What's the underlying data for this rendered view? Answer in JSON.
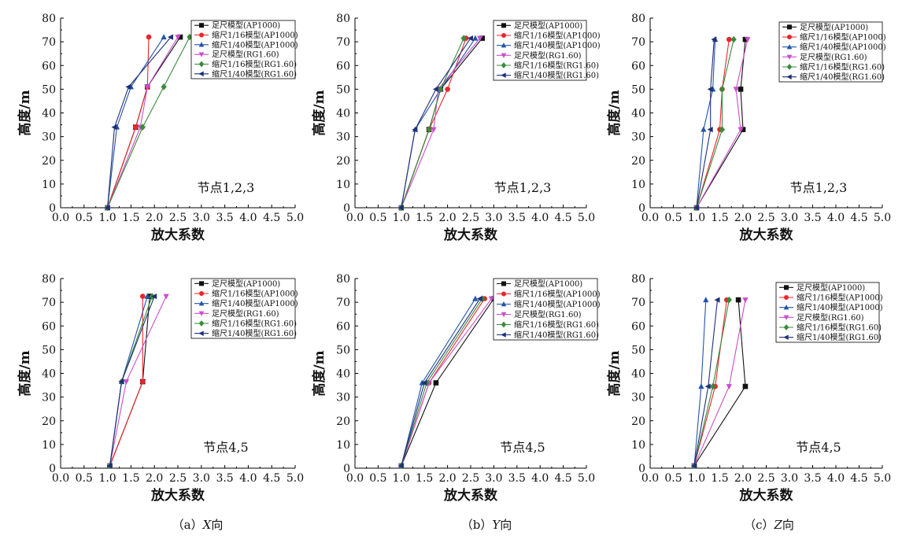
{
  "series_names": [
    "足尺模型(AP1000)",
    "缩尺1/16模型(AP1000)",
    "缩尺1/40模型(AP1000)",
    "足尺模型(RG1.60)",
    "缩尺1/16模型(RG1.60)",
    "缩尺1/40模型(RG1.60)"
  ],
  "series_colors": [
    "#111111",
    "#e8262b",
    "#2155a8",
    "#c94fc9",
    "#3a8a3a",
    "#1f2f7a"
  ],
  "series_markers": [
    "square",
    "circle",
    "triangle-up",
    "triangle-down",
    "diamond",
    "triangle-left"
  ],
  "xlabel": "放大系数",
  "ylabel": "高度/m",
  "xticks": [
    "0.0",
    "0.5",
    "1.0",
    "1.5",
    "2.0",
    "2.5",
    "3.0",
    "3.5",
    "4.0",
    "4.5",
    "5.0"
  ],
  "yticks": [
    "0",
    "10",
    "20",
    "30",
    "40",
    "50",
    "60",
    "70",
    "80"
  ],
  "captions": [
    {
      "prefix": "（a）",
      "axis": "X",
      "suffix": "向"
    },
    {
      "prefix": "（b）",
      "axis": "Y",
      "suffix": "向"
    },
    {
      "prefix": "（c）",
      "axis": "Z",
      "suffix": "向"
    }
  ],
  "chart_data": [
    {
      "type": "line",
      "annotation": "节点1,2,3",
      "xlim": [
        0,
        5
      ],
      "ylim": [
        0,
        80
      ],
      "grid": false,
      "legend": "top-right",
      "series": [
        {
          "name": "足尺模型(AP1000)",
          "x": [
            1.0,
            1.6,
            1.85,
            2.55
          ],
          "y": [
            0,
            34,
            51,
            72
          ]
        },
        {
          "name": "缩尺1/16模型(AP1000)",
          "x": [
            1.0,
            1.6,
            1.85,
            1.88
          ],
          "y": [
            0,
            34,
            51,
            72
          ]
        },
        {
          "name": "缩尺1/40模型(AP1000)",
          "x": [
            1.0,
            1.2,
            1.5,
            2.2
          ],
          "y": [
            0,
            34,
            51,
            72
          ]
        },
        {
          "name": "足尺模型(RG1.60)",
          "x": [
            1.0,
            1.7,
            1.85,
            2.5
          ],
          "y": [
            0,
            34,
            51,
            72
          ]
        },
        {
          "name": "缩尺1/16模型(RG1.60)",
          "x": [
            1.0,
            1.75,
            2.2,
            2.75
          ],
          "y": [
            0,
            34,
            51,
            72
          ]
        },
        {
          "name": "缩尺1/40模型(RG1.60)",
          "x": [
            1.0,
            1.15,
            1.45,
            2.35
          ],
          "y": [
            0,
            34,
            51,
            72
          ]
        }
      ]
    },
    {
      "type": "line",
      "annotation": "节点1,2,3",
      "xlim": [
        0,
        5
      ],
      "ylim": [
        0,
        80
      ],
      "grid": false,
      "legend": "top-right",
      "series": [
        {
          "name": "足尺模型(AP1000)",
          "x": [
            1.0,
            1.6,
            1.85,
            2.75
          ],
          "y": [
            0,
            33,
            50,
            71.5
          ]
        },
        {
          "name": "缩尺1/16模型(AP1000)",
          "x": [
            1.0,
            1.6,
            2.0,
            2.4
          ],
          "y": [
            0,
            33,
            50,
            71.5
          ]
        },
        {
          "name": "缩尺1/40模型(AP1000)",
          "x": [
            1.0,
            1.3,
            1.85,
            2.6
          ],
          "y": [
            0,
            33,
            50,
            71.5
          ]
        },
        {
          "name": "足尺模型(RG1.60)",
          "x": [
            1.0,
            1.7,
            1.8,
            2.7
          ],
          "y": [
            0,
            33,
            50,
            71.5
          ]
        },
        {
          "name": "缩尺1/16模型(RG1.60)",
          "x": [
            1.0,
            1.6,
            1.85,
            2.35
          ],
          "y": [
            0,
            33,
            50,
            71.5
          ]
        },
        {
          "name": "缩尺1/40模型(RG1.60)",
          "x": [
            1.0,
            1.3,
            1.75,
            2.5
          ],
          "y": [
            0,
            33,
            50,
            71.5
          ]
        }
      ]
    },
    {
      "type": "line",
      "annotation": "节点1,2,3",
      "xlim": [
        0,
        5
      ],
      "ylim": [
        0,
        80
      ],
      "grid": false,
      "legend": "top-right",
      "series": [
        {
          "name": "足尺模型(AP1000)",
          "x": [
            1.0,
            2.0,
            1.95,
            2.05
          ],
          "y": [
            0,
            33,
            50,
            71
          ]
        },
        {
          "name": "缩尺1/16模型(AP1000)",
          "x": [
            1.0,
            1.5,
            1.55,
            1.7
          ],
          "y": [
            0,
            33,
            50,
            71
          ]
        },
        {
          "name": "缩尺1/40模型(AP1000)",
          "x": [
            1.0,
            1.15,
            1.35,
            1.4
          ],
          "y": [
            0,
            33,
            50,
            71
          ]
        },
        {
          "name": "足尺模型(RG1.60)",
          "x": [
            1.0,
            1.95,
            1.85,
            2.1
          ],
          "y": [
            0,
            33,
            50,
            71
          ]
        },
        {
          "name": "缩尺1/16模型(RG1.60)",
          "x": [
            1.0,
            1.55,
            1.55,
            1.8
          ],
          "y": [
            0,
            33,
            50,
            71
          ]
        },
        {
          "name": "缩尺1/40模型(RG1.60)",
          "x": [
            1.0,
            1.3,
            1.3,
            1.38
          ],
          "y": [
            0,
            33,
            50,
            71
          ]
        }
      ]
    },
    {
      "type": "line",
      "annotation": "节点4,5",
      "xlim": [
        0,
        5
      ],
      "ylim": [
        0,
        80
      ],
      "grid": false,
      "legend": "top-right",
      "series": [
        {
          "name": "足尺模型(AP1000)",
          "x": [
            1.05,
            1.75,
            1.9
          ],
          "y": [
            1,
            36.5,
            72.5
          ]
        },
        {
          "name": "缩尺1/16模型(AP1000)",
          "x": [
            1.05,
            1.75,
            1.75
          ],
          "y": [
            1,
            36.5,
            72.5
          ]
        },
        {
          "name": "缩尺1/40模型(AP1000)",
          "x": [
            1.05,
            1.3,
            1.85
          ],
          "y": [
            1,
            36.5,
            72.5
          ]
        },
        {
          "name": "足尺模型(RG1.60)",
          "x": [
            1.05,
            1.4,
            2.25
          ],
          "y": [
            1,
            36.5,
            72.5
          ]
        },
        {
          "name": "缩尺1/16模型(RG1.60)",
          "x": [
            1.05,
            1.3,
            1.95
          ],
          "y": [
            1,
            36.5,
            72.5
          ]
        },
        {
          "name": "缩尺1/40模型(RG1.60)",
          "x": [
            1.05,
            1.3,
            2.0
          ],
          "y": [
            1,
            36.5,
            72.5
          ]
        }
      ]
    },
    {
      "type": "line",
      "annotation": "节点4,5",
      "xlim": [
        0,
        5
      ],
      "ylim": [
        0,
        80
      ],
      "grid": false,
      "legend": "top-right",
      "series": [
        {
          "name": "足尺模型(AP1000)",
          "x": [
            1.0,
            1.75,
            3.0
          ],
          "y": [
            1,
            36,
            71.5
          ]
        },
        {
          "name": "缩尺1/16模型(AP1000)",
          "x": [
            1.0,
            1.6,
            2.8
          ],
          "y": [
            1,
            36,
            71.5
          ]
        },
        {
          "name": "缩尺1/40模型(AP1000)",
          "x": [
            1.0,
            1.45,
            2.6
          ],
          "y": [
            1,
            36,
            71.5
          ]
        },
        {
          "name": "足尺模型(RG1.60)",
          "x": [
            1.0,
            1.6,
            2.95
          ],
          "y": [
            1,
            36,
            71.5
          ]
        },
        {
          "name": "缩尺1/16模型(RG1.60)",
          "x": [
            1.0,
            1.55,
            2.75
          ],
          "y": [
            1,
            36,
            71.5
          ]
        },
        {
          "name": "缩尺1/40模型(RG1.60)",
          "x": [
            1.0,
            1.5,
            2.7
          ],
          "y": [
            1,
            36,
            71.5
          ]
        }
      ]
    },
    {
      "type": "line",
      "annotation": "节点4,5",
      "xlim": [
        0,
        5
      ],
      "ylim": [
        0,
        80
      ],
      "grid": false,
      "legend": "top-right",
      "series": [
        {
          "name": "足尺模型(AP1000)",
          "x": [
            0.95,
            2.05,
            1.9
          ],
          "y": [
            1,
            34.5,
            71
          ]
        },
        {
          "name": "缩尺1/16模型(AP1000)",
          "x": [
            0.95,
            1.4,
            1.65
          ],
          "y": [
            1,
            34.5,
            71
          ]
        },
        {
          "name": "缩尺1/40模型(AP1000)",
          "x": [
            0.95,
            1.1,
            1.2
          ],
          "y": [
            1,
            34.5,
            71
          ]
        },
        {
          "name": "足尺模型(RG1.60)",
          "x": [
            0.95,
            1.7,
            2.05
          ],
          "y": [
            1,
            34.5,
            71
          ]
        },
        {
          "name": "缩尺1/16模型(RG1.60)",
          "x": [
            0.95,
            1.35,
            1.7
          ],
          "y": [
            1,
            34.5,
            71
          ]
        },
        {
          "name": "缩尺1/40模型(RG1.60)",
          "x": [
            0.95,
            1.25,
            1.45
          ],
          "y": [
            1,
            34.5,
            71
          ]
        }
      ]
    }
  ]
}
